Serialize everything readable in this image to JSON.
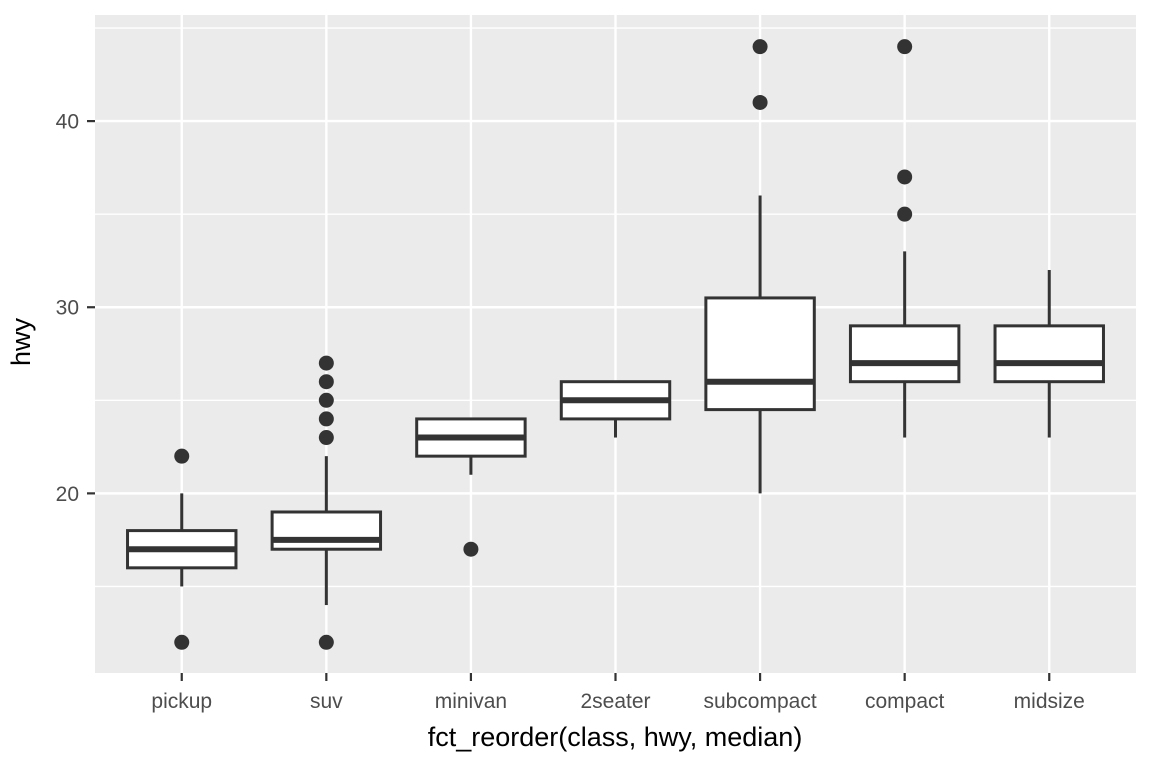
{
  "chart_data": {
    "type": "boxplot",
    "title": "",
    "xlabel": "fct_reorder(class, hwy, median)",
    "ylabel": "hwy",
    "categories": [
      "pickup",
      "suv",
      "minivan",
      "2seater",
      "subcompact",
      "compact",
      "midsize"
    ],
    "y_ticks": [
      20,
      30,
      40
    ],
    "y_minor_ticks": [
      15,
      25,
      35,
      45
    ],
    "ylim": [
      10.35,
      45.7
    ],
    "grid": "on",
    "legend": "none",
    "boxes": [
      {
        "category": "pickup",
        "whisker_low": 15,
        "q1": 16,
        "median": 17,
        "q3": 18,
        "whisker_high": 20,
        "outliers": [
          12,
          22
        ]
      },
      {
        "category": "suv",
        "whisker_low": 14,
        "q1": 17,
        "median": 17.5,
        "q3": 19,
        "whisker_high": 22,
        "outliers": [
          12,
          23,
          24,
          25,
          26,
          27
        ]
      },
      {
        "category": "minivan",
        "whisker_low": 21,
        "q1": 22,
        "median": 23,
        "q3": 24,
        "whisker_high": 24,
        "outliers": [
          17
        ]
      },
      {
        "category": "2seater",
        "whisker_low": 23,
        "q1": 24,
        "median": 25,
        "q3": 26,
        "whisker_high": 26,
        "outliers": []
      },
      {
        "category": "subcompact",
        "whisker_low": 20,
        "q1": 24.5,
        "median": 26,
        "q3": 30.5,
        "whisker_high": 36,
        "outliers": [
          41,
          44
        ]
      },
      {
        "category": "compact",
        "whisker_low": 23,
        "q1": 26,
        "median": 27,
        "q3": 29,
        "whisker_high": 33,
        "outliers": [
          35,
          37,
          44
        ]
      },
      {
        "category": "midsize",
        "whisker_low": 23,
        "q1": 26,
        "median": 27,
        "q3": 29,
        "whisker_high": 32,
        "outliers": []
      }
    ],
    "style": {
      "panel_bg": "#EBEBEB",
      "grid_color": "#FFFFFF",
      "box_stroke": "#333333",
      "box_fill": "#FFFFFF",
      "outlier_color": "#333333",
      "tick_color": "#333333",
      "tick_label_color": "#4D4D4D",
      "axis_title_color": "#000000"
    }
  }
}
